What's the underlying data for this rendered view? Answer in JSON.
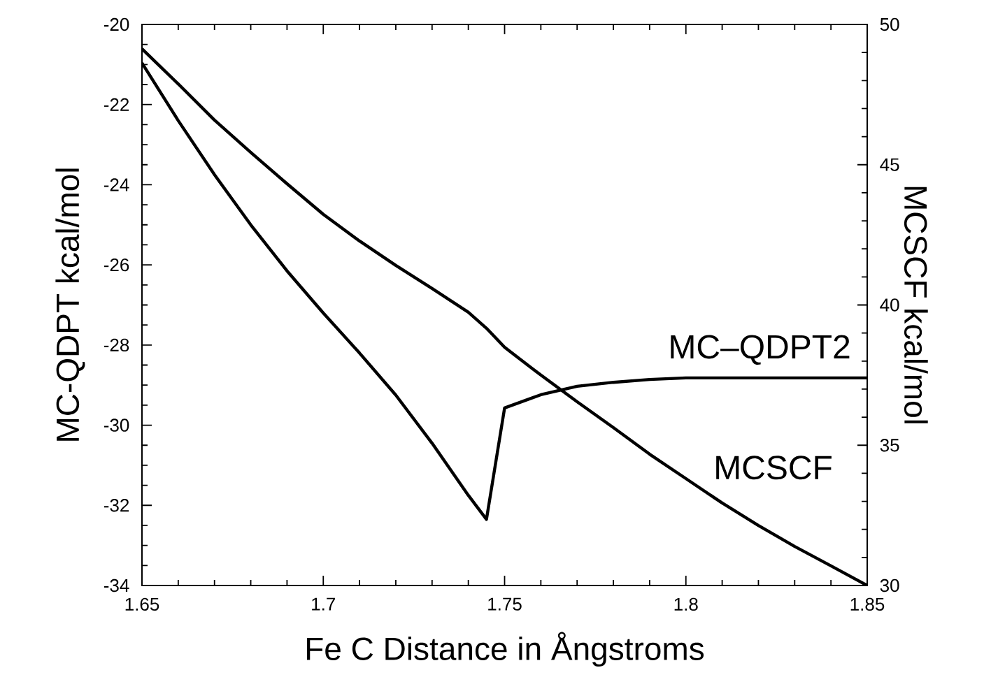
{
  "chart_data": {
    "type": "line",
    "xlabel": "Fe C Distance in Ångstroms",
    "ylabel": "MC-QDPT kcal/mol",
    "y2label": "MCSCF kcal/mol",
    "xlim": [
      1.65,
      1.85
    ],
    "xticks": [
      1.65,
      1.7,
      1.75,
      1.8,
      1.85
    ],
    "ylim": [
      -34,
      -20
    ],
    "yticks": [
      -34,
      -32,
      -30,
      -28,
      -26,
      -24,
      -22,
      -20
    ],
    "y2lim": [
      30,
      50
    ],
    "y2ticks": [
      30,
      35,
      40,
      45,
      50
    ],
    "legend": "right",
    "grid": false,
    "marker": "none",
    "line_style": "solid",
    "series": [
      {
        "name": "MC–QDPT2",
        "color": "#000000",
        "x": [
          1.65,
          1.66,
          1.67,
          1.68,
          1.69,
          1.7,
          1.71,
          1.72,
          1.73,
          1.74,
          1.745,
          1.75,
          1.76,
          1.77,
          1.78,
          1.79,
          1.8,
          1.85
        ],
        "values": [
          -20.96,
          -22.4,
          -23.75,
          -25.0,
          -26.15,
          -27.2,
          -28.2,
          -29.25,
          -30.45,
          -31.75,
          -32.35,
          -29.57,
          -29.24,
          -29.03,
          -28.93,
          -28.86,
          -28.82,
          -28.82
        ]
      },
      {
        "name": "MCSCF",
        "color": "#000000",
        "axis": "y2",
        "x": [
          1.65,
          1.66,
          1.67,
          1.68,
          1.69,
          1.7,
          1.71,
          1.72,
          1.73,
          1.74,
          1.745,
          1.75,
          1.76,
          1.77,
          1.78,
          1.79,
          1.8,
          1.81,
          1.82,
          1.83,
          1.84,
          1.85
        ],
        "values": [
          49.13,
          47.88,
          46.59,
          45.44,
          44.32,
          43.23,
          42.28,
          41.41,
          40.59,
          39.74,
          39.17,
          38.49,
          37.5,
          36.55,
          35.63,
          34.68,
          33.81,
          32.94,
          32.14,
          31.39,
          30.7,
          30.0
        ]
      }
    ]
  }
}
